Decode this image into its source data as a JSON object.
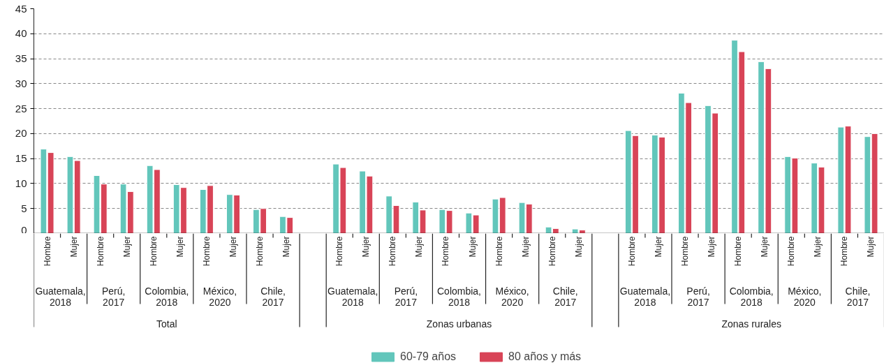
{
  "chart_data": {
    "type": "bar",
    "categories": [
      "Hombre",
      "Mujer",
      "Hombre",
      "Mujer",
      "Hombre",
      "Mujer",
      "Hombre",
      "Mujer",
      "Hombre",
      "Mujer",
      null,
      "Hombre",
      "Mujer",
      "Hombre",
      "Mujer",
      "Hombre",
      "Mujer",
      "Hombre",
      "Mujer",
      "Hombre",
      "Mujer",
      null,
      "Hombre",
      "Mujer",
      "Hombre",
      "Mujer",
      "Hombre",
      "Mujer",
      "Hombre",
      "Mujer",
      "Hombre",
      "Mujer"
    ],
    "series": [
      {
        "name": "60-79 años",
        "color": "#62c6bb",
        "values": [
          16.9,
          15.4,
          11.6,
          9.9,
          13.6,
          9.8,
          8.8,
          7.8,
          4.8,
          3.4,
          null,
          13.9,
          12.5,
          7.5,
          6.3,
          4.8,
          4.1,
          6.9,
          6.2,
          1.3,
          0.9,
          null,
          20.6,
          19.7,
          28.1,
          25.6,
          38.7,
          34.4,
          15.4,
          14.1,
          21.3,
          19.4
        ]
      },
      {
        "name": "80 años y más",
        "color": "#d84457",
        "values": [
          16.2,
          14.6,
          9.9,
          8.4,
          12.8,
          9.2,
          9.6,
          7.7,
          5.0,
          3.2,
          null,
          13.2,
          11.5,
          5.6,
          4.7,
          4.6,
          3.7,
          7.2,
          5.9,
          1.0,
          0.7,
          null,
          19.6,
          19.3,
          26.2,
          24.1,
          36.4,
          33.0,
          15.1,
          13.3,
          21.5,
          20.0
        ]
      }
    ],
    "annotations": [
      "Guatemala, 2018",
      "Perú, 2017",
      "Colombia, 2018",
      "México, 2020",
      "Chile, 2017",
      "Guatemala, 2018",
      "Perú, 2017",
      "Colombia, 2018",
      "México, 2020",
      "Chile, 2017",
      "Guatemala, 2018",
      "Perú, 2017",
      "Colombia, 2018",
      "México, 2020",
      "Chile, 2017",
      "Total",
      "Zonas urbanas",
      "Zonas rurales"
    ],
    "ylim": [
      0,
      45
    ],
    "yticks": [
      0,
      5,
      10,
      15,
      20,
      25,
      30,
      35,
      40,
      45
    ],
    "grid": "y",
    "legend": "bottom"
  }
}
